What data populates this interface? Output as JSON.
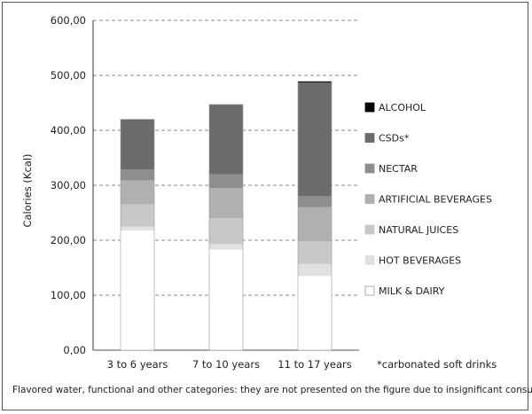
{
  "chart_data": {
    "type": "bar",
    "stacked": true,
    "title": "",
    "xlabel": "",
    "ylabel": "Calories (Kcal)",
    "ylim": [
      0,
      600
    ],
    "yticks": [
      0,
      100,
      200,
      300,
      400,
      500,
      600
    ],
    "ytick_labels": [
      "0,00",
      "100,00",
      "200,00",
      "300,00",
      "400,00",
      "500,00",
      "600,00"
    ],
    "grid": true,
    "legend_position": "right",
    "categories": [
      "3 to 6 years",
      "7 to 10 years",
      "11 to 17 years"
    ],
    "series": [
      {
        "name": "MILK & DAIRY",
        "color": "#ffffff",
        "values": [
          218,
          183,
          135
        ]
      },
      {
        "name": "HOT BEVERAGES",
        "color": "#e0e0e0",
        "values": [
          7,
          10,
          22
        ]
      },
      {
        "name": "NATURAL JUICES",
        "color": "#c8c8c8",
        "values": [
          40,
          47,
          41
        ]
      },
      {
        "name": "ARTIFICIAL BEVERAGES",
        "color": "#b0b0b0",
        "values": [
          44,
          55,
          62
        ]
      },
      {
        "name": "NECTAR",
        "color": "#8e8e8e",
        "values": [
          20,
          25,
          20
        ]
      },
      {
        "name": "CSDs*",
        "color": "#6b6b6b",
        "values": [
          91,
          127,
          207
        ]
      },
      {
        "name": "ALCOHOL",
        "color": "#000000",
        "values": [
          0,
          0,
          2
        ]
      }
    ],
    "annotations": {
      "csd_note": "*carbonated soft drinks",
      "footnote": "Flavored water, functional and other categories: they are not presented on the figure due to insignificant consumption."
    }
  }
}
